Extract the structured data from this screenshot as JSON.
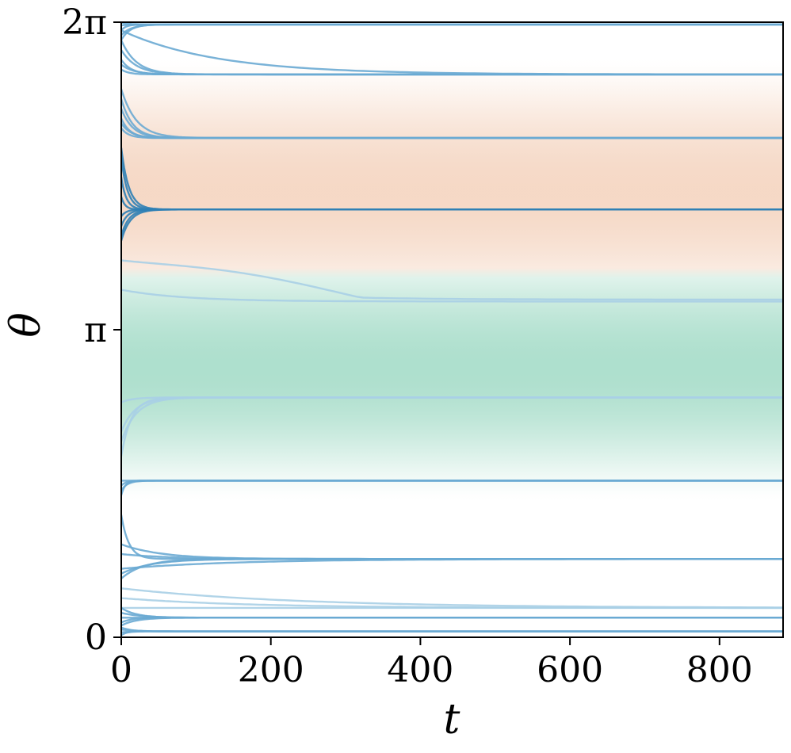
{
  "chart_data": {
    "type": "line",
    "xlabel": "t",
    "ylabel": "θ",
    "xlim": [
      0,
      885
    ],
    "ylim": [
      0,
      6.2832
    ],
    "x_ticks": [
      {
        "value": 0,
        "label": "0"
      },
      {
        "value": 200,
        "label": "200"
      },
      {
        "value": 400,
        "label": "400"
      },
      {
        "value": 600,
        "label": "600"
      },
      {
        "value": 800,
        "label": "800"
      }
    ],
    "y_ticks": [
      {
        "value": 0,
        "label": "0"
      },
      {
        "value": 3.1416,
        "label": "π"
      },
      {
        "value": 6.2832,
        "label": "2π"
      }
    ],
    "grid": false,
    "legend": "none",
    "background_field": {
      "bands": [
        {
          "center": 2.75,
          "half_width": 1.35,
          "color": "#a5dcc8",
          "peak_opacity": 0.9
        },
        {
          "center": 4.55,
          "half_width": 1.35,
          "color": "#f3cfb8",
          "peak_opacity": 0.8
        }
      ]
    },
    "colors": {
      "line_dark": "#2f7fb5",
      "line_mid": "#6aaad3",
      "line_light": "#a8cfe6"
    },
    "trajectory_groups": [
      {
        "y0": [
          6.28,
          6.25,
          6.2,
          6.15,
          6.1
        ],
        "t_settle": [
          30,
          25,
          20,
          40,
          35
        ],
        "final": 6.26,
        "tone": "mid"
      },
      {
        "y0": [
          6.2,
          6.1,
          6.0,
          5.9,
          5.85,
          5.8
        ],
        "t_settle": [
          380,
          60,
          60,
          40,
          50,
          30
        ],
        "final": 5.75,
        "tone": "mid"
      },
      {
        "y0": [
          5.6,
          5.5,
          5.4,
          5.3,
          5.25,
          5.2
        ],
        "t_settle": [
          60,
          45,
          45,
          35,
          40,
          30
        ],
        "final": 5.1,
        "tone": "mid"
      },
      {
        "y0": [
          5.0,
          4.9,
          4.7,
          4.5,
          4.3,
          4.2,
          4.1,
          4.05
        ],
        "t_settle": [
          30,
          25,
          20,
          15,
          20,
          25,
          30,
          35
        ],
        "final": 4.37,
        "tone": "dark"
      },
      {
        "y0": [
          3.85
        ],
        "t_settle": [
          320
        ],
        "final": 3.45,
        "tone": "light",
        "bump": 0.3
      },
      {
        "y0": [
          3.55
        ],
        "t_settle": [
          250
        ],
        "final": 3.43,
        "tone": "light"
      },
      {
        "y0": [
          2.4,
          2.1,
          2.0,
          1.85
        ],
        "t_settle": [
          45,
          55,
          60,
          40
        ],
        "final": 2.45,
        "tone": "light"
      },
      {
        "y0": [
          1.6,
          1.55,
          1.5,
          1.45
        ],
        "t_settle": [
          15,
          20,
          25,
          15
        ],
        "final": 1.6,
        "tone": "mid"
      },
      {
        "y0": [
          1.25,
          0.95,
          0.85,
          0.7,
          0.65,
          0.6
        ],
        "t_settle": [
          30,
          160,
          200,
          460,
          120,
          90
        ],
        "final": 0.8,
        "tone": "mid"
      },
      {
        "y0": [
          0.5,
          0.4,
          0.3
        ],
        "t_settle": [
          700,
          500,
          400
        ],
        "final": 0.3,
        "tone": "light"
      },
      {
        "y0": [
          0.3,
          0.25,
          0.2,
          0.15,
          0.12
        ],
        "t_settle": [
          60,
          80,
          50,
          40,
          60
        ],
        "final": 0.2,
        "tone": "mid"
      },
      {
        "y0": [
          0.1,
          0.08,
          0.05,
          0.02
        ],
        "t_settle": [
          40,
          50,
          30,
          20
        ],
        "final": 0.06,
        "tone": "mid"
      }
    ]
  }
}
